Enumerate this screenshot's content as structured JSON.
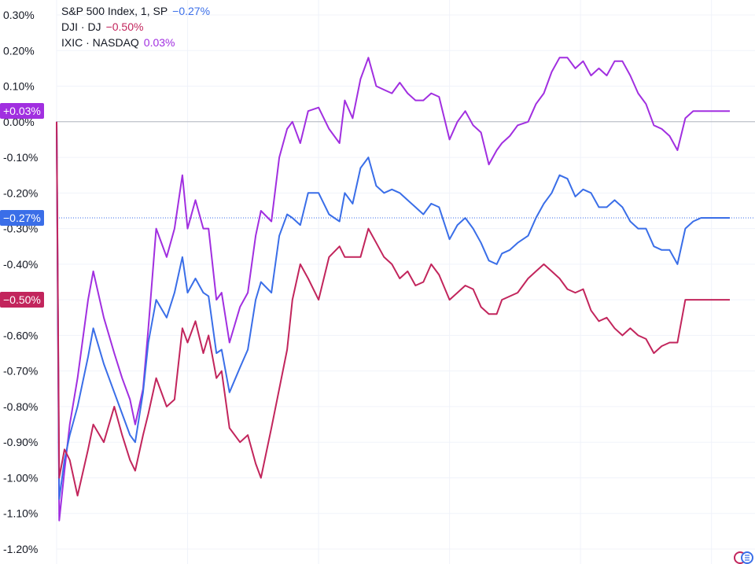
{
  "legend": [
    {
      "name": "S&P 500 Index, 1, SP",
      "value": "−0.27%",
      "color": "#3a6ee8"
    },
    {
      "name": "DJI · DJ",
      "value": "−0.50%",
      "color": "#c2255c"
    },
    {
      "name": "IXIC · NASDAQ",
      "value": "0.03%",
      "color": "#a12fe0"
    }
  ],
  "badges": {
    "nasdaq": {
      "label": "+0.03%",
      "color": "#a12fe0"
    },
    "sp500": {
      "label": "−0.27%",
      "color": "#3a6ee8"
    },
    "dji": {
      "label": "−0.50%",
      "color": "#c2255c"
    }
  },
  "chart_data": {
    "type": "line",
    "ylim": [
      -1.22,
      0.32
    ],
    "y_ticks": [
      "0.30%",
      "0.20%",
      "0.10%",
      "0.00%",
      "-0.10%",
      "-0.20%",
      "-0.30%",
      "-0.40%",
      "-0.50%",
      "-0.60%",
      "-0.70%",
      "-0.80%",
      "-0.90%",
      "-1.00%",
      "-1.10%",
      "-1.20%"
    ],
    "y_tick_values": [
      0.3,
      0.2,
      0.1,
      0.0,
      -0.1,
      -0.2,
      -0.3,
      -0.4,
      -0.5,
      -0.6,
      -0.7,
      -0.8,
      -0.9,
      -1.0,
      -1.1,
      -1.2
    ],
    "x_range": [
      0,
      260
    ],
    "x_grid": [
      0,
      50,
      100,
      150,
      200,
      250
    ],
    "baseline": 0.0,
    "series": [
      {
        "name": "IXIC · NASDAQ",
        "color": "#a12fe0",
        "x": [
          0,
          1,
          3,
          5,
          8,
          12,
          14,
          18,
          22,
          25,
          28,
          30,
          33,
          35,
          38,
          42,
          45,
          48,
          50,
          53,
          56,
          58,
          61,
          63,
          66,
          70,
          73,
          76,
          78,
          82,
          85,
          88,
          90,
          93,
          96,
          100,
          104,
          108,
          110,
          113,
          116,
          119,
          122,
          125,
          128,
          131,
          134,
          137,
          140,
          143,
          146,
          150,
          153,
          156,
          159,
          162,
          165,
          168,
          170,
          173,
          176,
          180,
          183,
          186,
          189,
          192,
          195,
          198,
          201,
          204,
          207,
          210,
          213,
          216,
          219,
          222,
          225,
          228,
          231,
          234,
          237,
          240,
          243,
          246,
          249,
          252,
          255,
          257
        ],
        "y": [
          0.0,
          -1.12,
          -0.98,
          -0.85,
          -0.72,
          -0.5,
          -0.42,
          -0.55,
          -0.65,
          -0.72,
          -0.78,
          -0.85,
          -0.75,
          -0.58,
          -0.3,
          -0.38,
          -0.3,
          -0.15,
          -0.3,
          -0.22,
          -0.3,
          -0.3,
          -0.5,
          -0.48,
          -0.62,
          -0.52,
          -0.48,
          -0.32,
          -0.25,
          -0.28,
          -0.1,
          -0.02,
          0.0,
          -0.06,
          0.03,
          0.04,
          -0.02,
          -0.06,
          0.06,
          0.01,
          0.12,
          0.18,
          0.1,
          0.09,
          0.08,
          0.11,
          0.08,
          0.06,
          0.06,
          0.08,
          0.07,
          -0.05,
          -0.0,
          0.03,
          -0.01,
          -0.03,
          -0.12,
          -0.08,
          -0.06,
          -0.04,
          -0.01,
          0.0,
          0.05,
          0.08,
          0.14,
          0.18,
          0.18,
          0.15,
          0.17,
          0.13,
          0.15,
          0.13,
          0.17,
          0.17,
          0.13,
          0.08,
          0.05,
          -0.01,
          -0.02,
          -0.04,
          -0.08,
          0.01,
          0.03,
          0.03,
          0.03,
          0.03,
          0.03,
          0.03
        ]
      },
      {
        "name": "S&P 500 Index, 1, SP",
        "color": "#3a6ee8",
        "x": [
          0,
          1,
          3,
          5,
          8,
          12,
          14,
          18,
          22,
          25,
          28,
          30,
          33,
          35,
          38,
          42,
          45,
          48,
          50,
          53,
          56,
          58,
          61,
          63,
          66,
          70,
          73,
          76,
          78,
          82,
          85,
          88,
          90,
          93,
          96,
          100,
          104,
          108,
          110,
          113,
          116,
          119,
          122,
          125,
          128,
          131,
          134,
          137,
          140,
          143,
          146,
          150,
          153,
          156,
          159,
          162,
          165,
          168,
          170,
          173,
          176,
          180,
          183,
          186,
          189,
          192,
          195,
          198,
          201,
          204,
          207,
          210,
          213,
          216,
          219,
          222,
          225,
          228,
          231,
          234,
          237,
          240,
          243,
          246,
          249,
          252,
          255,
          257
        ],
        "y": [
          0.0,
          -1.06,
          -0.95,
          -0.88,
          -0.8,
          -0.66,
          -0.58,
          -0.68,
          -0.76,
          -0.82,
          -0.88,
          -0.9,
          -0.76,
          -0.62,
          -0.5,
          -0.55,
          -0.48,
          -0.38,
          -0.48,
          -0.44,
          -0.48,
          -0.49,
          -0.65,
          -0.64,
          -0.76,
          -0.69,
          -0.64,
          -0.5,
          -0.45,
          -0.48,
          -0.32,
          -0.26,
          -0.27,
          -0.29,
          -0.2,
          -0.2,
          -0.26,
          -0.28,
          -0.2,
          -0.23,
          -0.13,
          -0.1,
          -0.18,
          -0.2,
          -0.19,
          -0.2,
          -0.22,
          -0.24,
          -0.26,
          -0.23,
          -0.24,
          -0.33,
          -0.29,
          -0.27,
          -0.3,
          -0.34,
          -0.39,
          -0.4,
          -0.37,
          -0.36,
          -0.34,
          -0.32,
          -0.27,
          -0.23,
          -0.2,
          -0.15,
          -0.16,
          -0.21,
          -0.19,
          -0.2,
          -0.24,
          -0.24,
          -0.22,
          -0.24,
          -0.28,
          -0.3,
          -0.3,
          -0.35,
          -0.36,
          -0.36,
          -0.4,
          -0.3,
          -0.28,
          -0.27,
          -0.27,
          -0.27,
          -0.27,
          -0.27
        ]
      },
      {
        "name": "DJI · DJ",
        "color": "#c2255c",
        "x": [
          0,
          1,
          3,
          5,
          8,
          12,
          14,
          18,
          22,
          25,
          28,
          30,
          33,
          35,
          38,
          42,
          45,
          48,
          50,
          53,
          56,
          58,
          61,
          63,
          66,
          70,
          73,
          76,
          78,
          82,
          85,
          88,
          90,
          93,
          96,
          100,
          104,
          108,
          110,
          113,
          116,
          119,
          122,
          125,
          128,
          131,
          134,
          137,
          140,
          143,
          146,
          150,
          153,
          156,
          159,
          162,
          165,
          168,
          170,
          173,
          176,
          180,
          183,
          186,
          189,
          192,
          195,
          198,
          201,
          204,
          207,
          210,
          213,
          216,
          219,
          222,
          225,
          228,
          231,
          234,
          237,
          240,
          243,
          246,
          249,
          252,
          255,
          257
        ],
        "y": [
          0.0,
          -1.0,
          -0.92,
          -0.95,
          -1.05,
          -0.92,
          -0.85,
          -0.9,
          -0.8,
          -0.88,
          -0.95,
          -0.98,
          -0.88,
          -0.82,
          -0.72,
          -0.8,
          -0.78,
          -0.58,
          -0.62,
          -0.56,
          -0.65,
          -0.6,
          -0.72,
          -0.7,
          -0.86,
          -0.9,
          -0.88,
          -0.96,
          -1.0,
          -0.86,
          -0.75,
          -0.64,
          -0.5,
          -0.4,
          -0.44,
          -0.5,
          -0.38,
          -0.35,
          -0.38,
          -0.38,
          -0.38,
          -0.3,
          -0.34,
          -0.38,
          -0.4,
          -0.44,
          -0.42,
          -0.46,
          -0.45,
          -0.4,
          -0.43,
          -0.5,
          -0.48,
          -0.46,
          -0.47,
          -0.52,
          -0.54,
          -0.54,
          -0.5,
          -0.49,
          -0.48,
          -0.44,
          -0.42,
          -0.4,
          -0.42,
          -0.44,
          -0.47,
          -0.48,
          -0.47,
          -0.53,
          -0.56,
          -0.55,
          -0.58,
          -0.6,
          -0.58,
          -0.6,
          -0.61,
          -0.65,
          -0.63,
          -0.62,
          -0.62,
          -0.5,
          -0.5,
          -0.5,
          -0.5,
          -0.5,
          -0.5,
          -0.5
        ]
      }
    ]
  }
}
